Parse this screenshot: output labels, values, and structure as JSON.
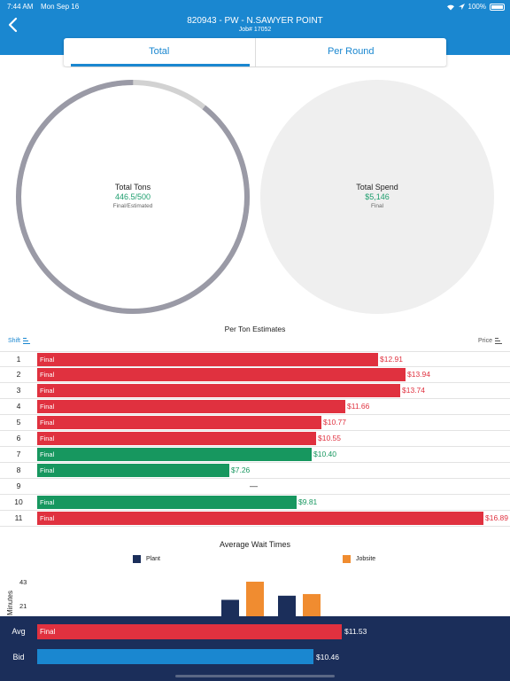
{
  "status": {
    "time": "7:44 AM",
    "date": "Mon Sep 16",
    "battery": "100%"
  },
  "nav": {
    "title": "820943 - PW - N.SAWYER POINT",
    "subtitle": "Job# 17052"
  },
  "tabs": [
    {
      "label": "Total",
      "active": true
    },
    {
      "label": "Per Round",
      "active": false
    }
  ],
  "gauges": {
    "tons": {
      "title": "Total Tons",
      "value": "446.5/500",
      "subtitle": "Final/Estimated",
      "fraction": 0.893
    },
    "spend": {
      "title": "Total Spend",
      "value": "$5,146",
      "subtitle": "Final"
    }
  },
  "estimates": {
    "title": "Per Ton Estimates",
    "shift_label": "Shift",
    "price_label": "Price",
    "max_value": 16.89,
    "rows": [
      {
        "shift": "1",
        "label": "Final",
        "price": "$12.91",
        "value": 12.91,
        "color": "#e0313f"
      },
      {
        "shift": "2",
        "label": "Final",
        "price": "$13.94",
        "value": 13.94,
        "color": "#e0313f"
      },
      {
        "shift": "3",
        "label": "Final",
        "price": "$13.74",
        "value": 13.74,
        "color": "#e0313f"
      },
      {
        "shift": "4",
        "label": "Final",
        "price": "$11.66",
        "value": 11.66,
        "color": "#e0313f"
      },
      {
        "shift": "5",
        "label": "Final",
        "price": "$10.77",
        "value": 10.77,
        "color": "#e0313f"
      },
      {
        "shift": "6",
        "label": "Final",
        "price": "$10.55",
        "value": 10.55,
        "color": "#e0313f"
      },
      {
        "shift": "7",
        "label": "Final",
        "price": "$10.40",
        "value": 10.4,
        "color": "#17975f"
      },
      {
        "shift": "8",
        "label": "Final",
        "price": "$7.26",
        "value": 7.26,
        "color": "#17975f"
      },
      {
        "shift": "9",
        "label": "",
        "price": "",
        "value": 0,
        "color": "",
        "empty_text": "—"
      },
      {
        "shift": "10",
        "label": "Final",
        "price": "$9.81",
        "value": 9.81,
        "color": "#17975f"
      },
      {
        "shift": "11",
        "label": "Final",
        "price": "$16.89",
        "value": 16.89,
        "color": "#e0313f"
      }
    ]
  },
  "wait": {
    "title": "Average Wait Times",
    "legend": [
      {
        "name": "Plant",
        "color": "#1b2e5a"
      },
      {
        "name": "Jobsite",
        "color": "#f08c30"
      }
    ],
    "ylabel": "Minutes",
    "ticks": [
      "43",
      "21"
    ],
    "chart_data": {
      "type": "bar",
      "ylabel": "Minutes",
      "series": [
        {
          "name": "Plant",
          "values": [
            21,
            26
          ]
        },
        {
          "name": "Jobsite",
          "values": [
            43,
            28
          ]
        }
      ]
    }
  },
  "summary": {
    "avg": {
      "label": "Avg",
      "bar_label": "Final",
      "price": "$11.53",
      "value": 11.53,
      "color": "#e0313f"
    },
    "bid": {
      "label": "Bid",
      "bar_label": "",
      "price": "$10.46",
      "value": 10.46,
      "color": "#1a87d0"
    }
  }
}
